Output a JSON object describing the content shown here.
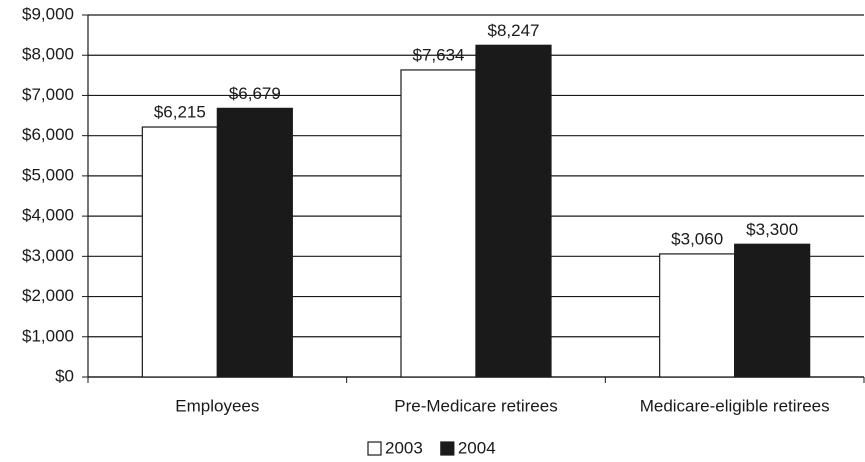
{
  "chart_data": {
    "type": "bar",
    "categories": [
      "Employees",
      "Pre-Medicare retirees",
      "Medicare-eligible retirees"
    ],
    "series": [
      {
        "name": "2003",
        "color": "#ffffff",
        "values": [
          6215,
          7634,
          3060
        ],
        "value_labels": [
          "$6,215",
          "$7,634",
          "$3,060"
        ]
      },
      {
        "name": "2004",
        "color": "#1a1a1a",
        "values": [
          6679,
          8247,
          3300
        ],
        "value_labels": [
          "$6,679",
          "$8,247",
          "$3,300"
        ]
      }
    ],
    "ylim": [
      0,
      9000
    ],
    "yticks": [
      {
        "value": 0,
        "label": "$0"
      },
      {
        "value": 1000,
        "label": "$1,000"
      },
      {
        "value": 2000,
        "label": "$2,000"
      },
      {
        "value": 3000,
        "label": "$3,000"
      },
      {
        "value": 4000,
        "label": "$4,000"
      },
      {
        "value": 5000,
        "label": "$5,000"
      },
      {
        "value": 6000,
        "label": "$6,000"
      },
      {
        "value": 7000,
        "label": "$7,000"
      },
      {
        "value": 8000,
        "label": "$8,000"
      },
      {
        "value": 9000,
        "label": "$9,000"
      }
    ],
    "grid": true,
    "legend": "bottom"
  }
}
